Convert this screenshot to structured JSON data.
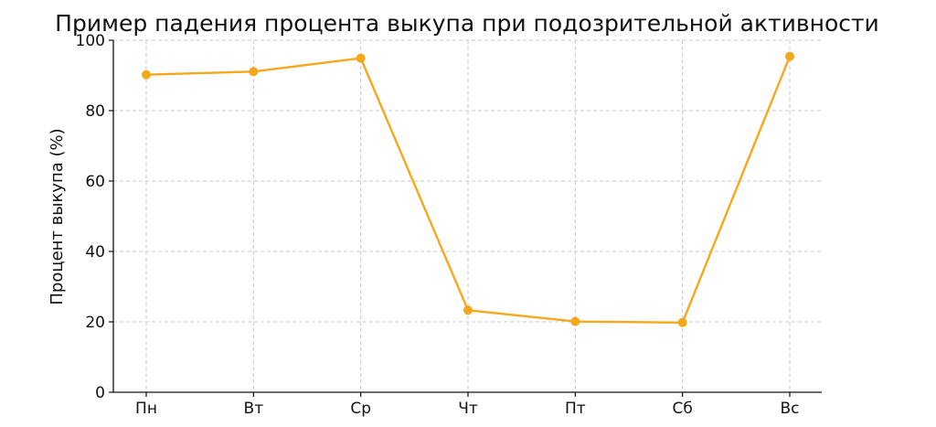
{
  "chart_data": {
    "type": "line",
    "title": "Пример падения процента выкупа при подозрительной активности",
    "xlabel": "",
    "ylabel": "Процент выкупа (%)",
    "categories": [
      "Пн",
      "Вт",
      "Ср",
      "Чт",
      "Пт",
      "Сб",
      "Вс"
    ],
    "series": [
      {
        "values": [
          90.2,
          91.1,
          94.9,
          23.3,
          20.1,
          19.8,
          95.4
        ]
      }
    ],
    "ylim": [
      0,
      100
    ],
    "yticks": [
      0,
      20,
      40,
      60,
      80,
      100
    ],
    "grid": true,
    "line_color": "#F5A81C"
  }
}
